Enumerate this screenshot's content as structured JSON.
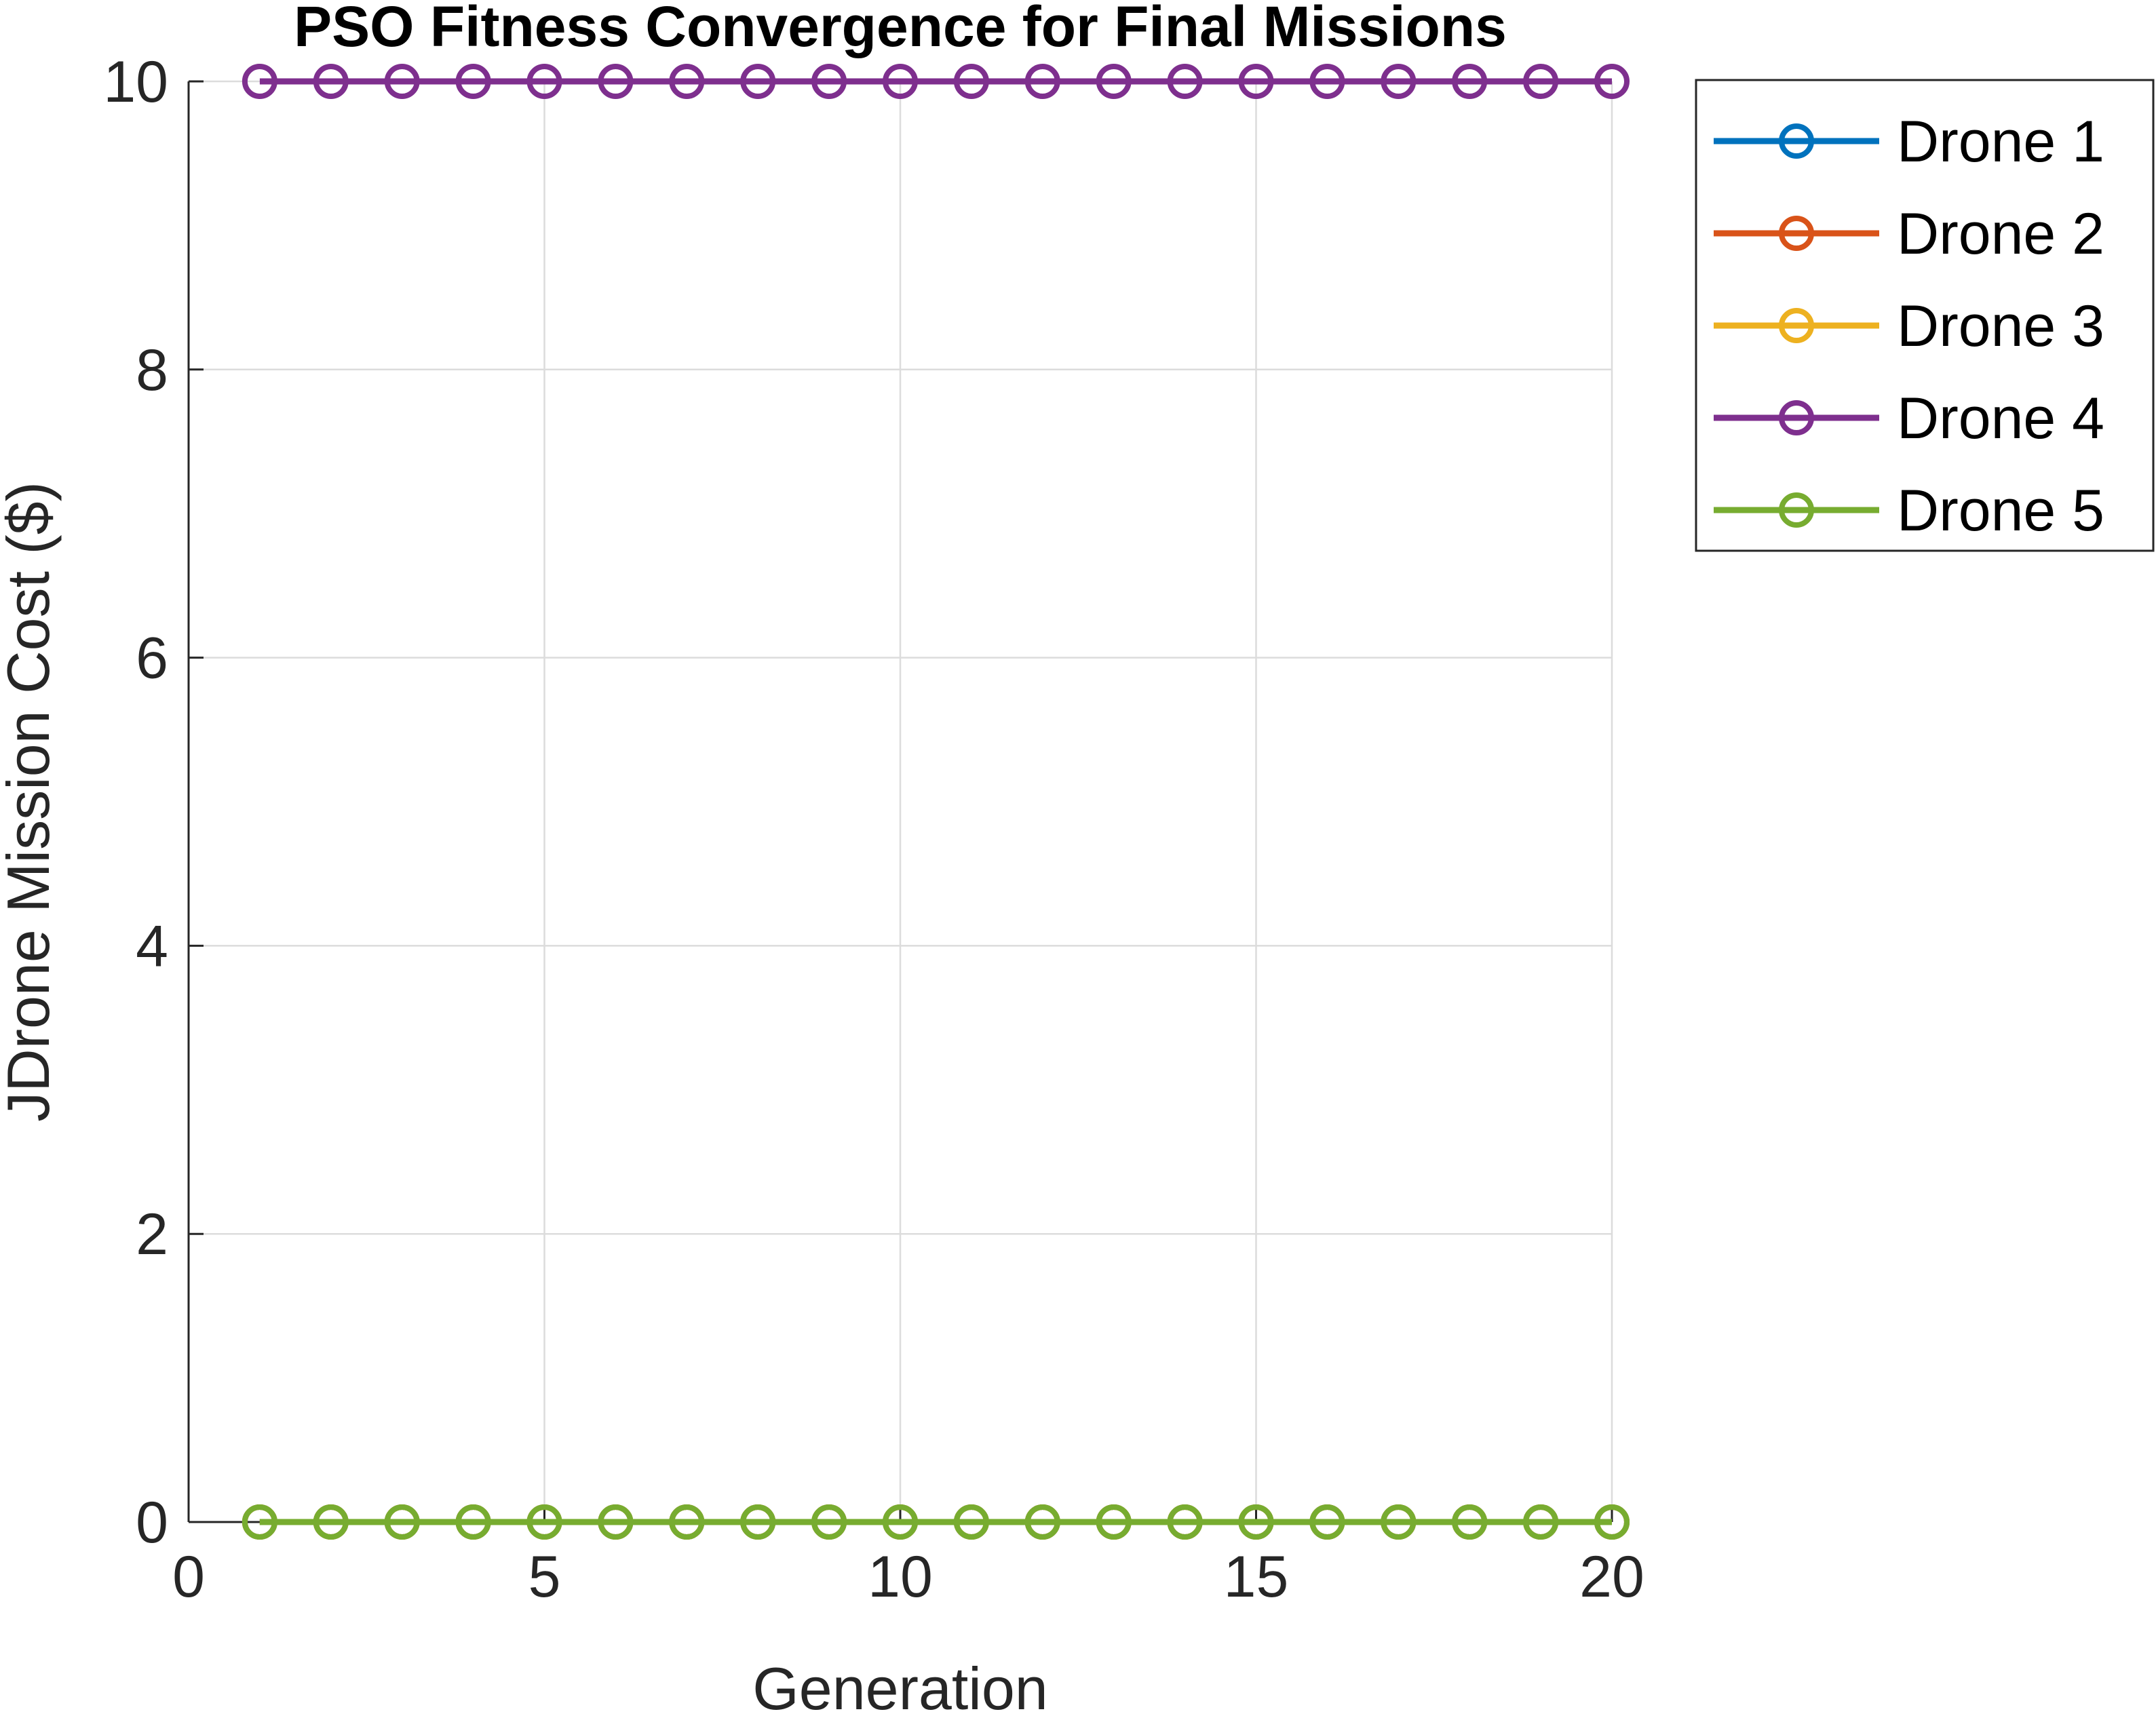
{
  "chart_data": {
    "type": "line",
    "title": "PSO Fitness Convergence for Final Missions",
    "xlabel": "Generation",
    "ylabel": "JDrone Mission Cost ($)",
    "xlim": [
      0,
      20
    ],
    "ylim": [
      0,
      10
    ],
    "xticks": [
      0,
      5,
      10,
      15,
      20
    ],
    "yticks": [
      0,
      2,
      4,
      6,
      8,
      10
    ],
    "grid": true,
    "legend_position": "outside-top-right",
    "x": [
      1,
      2,
      3,
      4,
      5,
      6,
      7,
      8,
      9,
      10,
      11,
      12,
      13,
      14,
      15,
      16,
      17,
      18,
      19,
      20
    ],
    "series": [
      {
        "name": "Drone 1",
        "color": "#0072BD",
        "values": [
          0,
          0,
          0,
          0,
          0,
          0,
          0,
          0,
          0,
          0,
          0,
          0,
          0,
          0,
          0,
          0,
          0,
          0,
          0,
          0
        ]
      },
      {
        "name": "Drone 2",
        "color": "#D95319",
        "values": [
          0,
          0,
          0,
          0,
          0,
          0,
          0,
          0,
          0,
          0,
          0,
          0,
          0,
          0,
          0,
          0,
          0,
          0,
          0,
          0
        ]
      },
      {
        "name": "Drone 3",
        "color": "#EDB120",
        "values": [
          0,
          0,
          0,
          0,
          0,
          0,
          0,
          0,
          0,
          0,
          0,
          0,
          0,
          0,
          0,
          0,
          0,
          0,
          0,
          0
        ]
      },
      {
        "name": "Drone 4",
        "color": "#7E2F8E",
        "values": [
          10,
          10,
          10,
          10,
          10,
          10,
          10,
          10,
          10,
          10,
          10,
          10,
          10,
          10,
          10,
          10,
          10,
          10,
          10,
          10
        ]
      },
      {
        "name": "Drone 5",
        "color": "#77AC30",
        "values": [
          0,
          0,
          0,
          0,
          0,
          0,
          0,
          0,
          0,
          0,
          0,
          0,
          0,
          0,
          0,
          0,
          0,
          0,
          0,
          0
        ]
      }
    ]
  }
}
